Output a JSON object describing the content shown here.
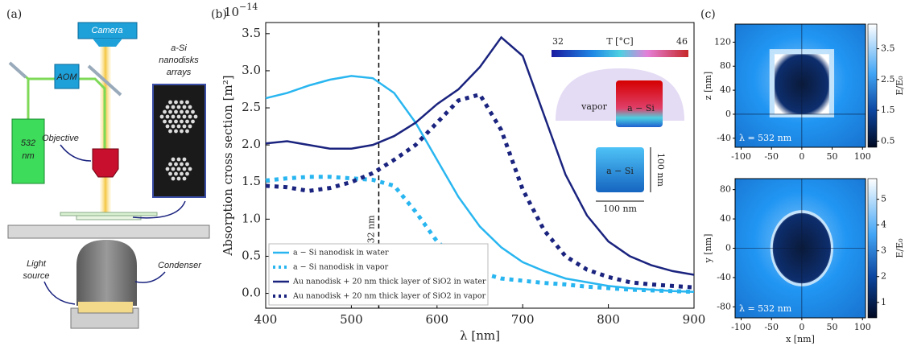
{
  "panel_labels": [
    "(a)",
    "(b)",
    "(c)"
  ],
  "schematic": {
    "camera": "Camera",
    "aom": "AOM",
    "laser": [
      "532",
      "nm"
    ],
    "objective": "Objective",
    "sample": [
      "a-Si",
      "nanodisks",
      "arrays"
    ],
    "light_source": [
      "Light",
      "source"
    ],
    "condenser": "Condenser"
  },
  "chart_data": [
    {
      "type": "line",
      "y_scale_base": "10",
      "y_scale_exponent": "−14",
      "ylabel": "Absorption cross section [m²]",
      "xlabel": "λ [nm]",
      "xlim": [
        400,
        900
      ],
      "xticks": [
        400,
        500,
        600,
        700,
        800,
        900
      ],
      "ylim": [
        -0.2,
        3.65
      ],
      "yticks": [
        {
          "value": 0,
          "label": "0.0"
        },
        0.5,
        {
          "value": 1,
          "label": "1.0"
        },
        1.5,
        {
          "value": 2,
          "label": "2.0"
        },
        2.5,
        {
          "value": 3,
          "label": "3.0"
        },
        3.5
      ],
      "legend": "lower left",
      "x": [
        400,
        425,
        450,
        475,
        500,
        525,
        550,
        575,
        600,
        625,
        650,
        675,
        700,
        725,
        750,
        775,
        800,
        825,
        850,
        875,
        900
      ],
      "series": [
        {
          "name": "a − Si nanodisk in water",
          "color": "#29b6f0",
          "style": "solid",
          "values": [
            2.63,
            2.7,
            2.8,
            2.88,
            2.93,
            2.9,
            2.7,
            2.3,
            1.8,
            1.3,
            0.9,
            0.62,
            0.42,
            0.3,
            0.2,
            0.15,
            0.1,
            0.07,
            0.05,
            0.03,
            0.02
          ]
        },
        {
          "name": "a − Si nanodisk in vapor",
          "color": "#29b6f0",
          "style": "dotted",
          "values": [
            1.52,
            1.55,
            1.57,
            1.57,
            1.55,
            1.53,
            1.45,
            1.1,
            0.7,
            0.45,
            0.28,
            0.2,
            0.17,
            0.14,
            0.12,
            0.09,
            0.07,
            0.05,
            0.04,
            0.03,
            0.02
          ]
        },
        {
          "name": "Au nanodisk + 20 nm thick layer of SiO2 in water",
          "color": "#1a237e",
          "style": "solid",
          "values": [
            2.02,
            2.05,
            2.0,
            1.95,
            1.95,
            2.0,
            2.12,
            2.3,
            2.55,
            2.75,
            3.05,
            3.45,
            3.2,
            2.4,
            1.6,
            1.05,
            0.7,
            0.5,
            0.38,
            0.3,
            0.25
          ]
        },
        {
          "name": "Au nanodisk + 20 nm thick layer of SiO2 in vapor",
          "color": "#1a237e",
          "style": "dotted",
          "values": [
            1.45,
            1.43,
            1.38,
            1.42,
            1.5,
            1.62,
            1.8,
            2.0,
            2.3,
            2.6,
            2.68,
            2.2,
            1.4,
            0.85,
            0.5,
            0.32,
            0.22,
            0.15,
            0.12,
            0.1,
            0.08
          ]
        }
      ],
      "vline": {
        "x": 532,
        "label": "λ = 532 nm"
      },
      "inset": {
        "colorbar_label": "T [°C]",
        "colorbar_ticks": [
          32,
          46
        ],
        "labels": [
          "vapor",
          "a − Si",
          "a − Si",
          "100 nm",
          "100 nm"
        ]
      }
    },
    {
      "type": "heatmap",
      "xlim": [
        -110,
        105
      ],
      "xticks": [
        -100,
        -50,
        0,
        50,
        100
      ],
      "ylim": [
        -55,
        150
      ],
      "yticks": [
        -40,
        0,
        40,
        80,
        120
      ],
      "ylabel": "z [nm]",
      "colorbar_label": "E/E₀",
      "colorbar_lim": [
        0.3,
        4.3
      ],
      "colorbar_ticks": [
        0.5,
        1.5,
        2.5,
        3.5
      ],
      "annotation": "λ = 532 nm"
    },
    {
      "type": "heatmap",
      "xlim": [
        -110,
        105
      ],
      "xticks": [
        -100,
        -50,
        0,
        50,
        100
      ],
      "ylim": [
        -95,
        95
      ],
      "yticks": [
        -80,
        -40,
        0,
        40,
        80
      ],
      "xlabel": "x [nm]",
      "ylabel": "y [nm]",
      "colorbar_label": "E/E₀",
      "colorbar_lim": [
        0.4,
        5.8
      ],
      "colorbar_ticks": [
        1,
        2,
        3,
        4,
        5
      ],
      "annotation": "λ = 532 nm"
    }
  ]
}
